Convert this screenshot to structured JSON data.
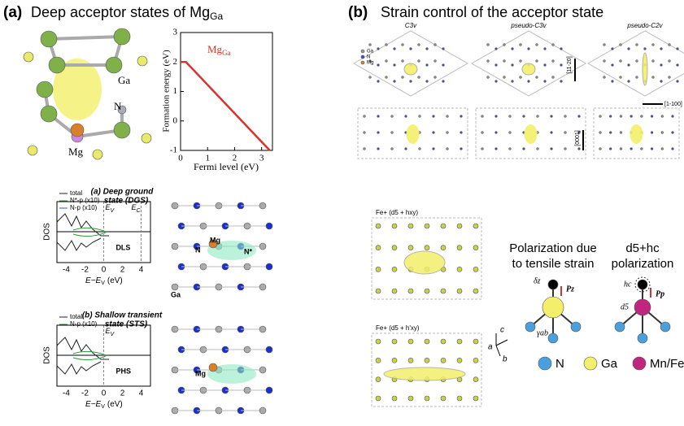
{
  "panel_a": {
    "letter": "(a)",
    "title": "Deep acceptor states of Mg",
    "title_sub": "Ga",
    "structure_labels": [
      "Ga",
      "N",
      "Mg"
    ],
    "plot": {
      "y_label": "Formation energy (eV)",
      "x_label": "Fermi level (eV)",
      "line_label": "Mg",
      "line_label_sub": "Ga",
      "line_color": "#d9342b",
      "x": [
        0,
        0.2,
        3.3
      ],
      "y": [
        2,
        2,
        -1
      ],
      "xlim": [
        0,
        3.4
      ],
      "ylim": [
        -1,
        3
      ],
      "xticks": [
        0,
        1,
        2,
        3
      ],
      "yticks": [
        -1,
        0,
        1,
        2,
        3
      ]
    },
    "dos": [
      {
        "title": [
          "(a) Deep ground",
          "state (DGS)"
        ],
        "legend": [
          "total",
          "N*-p (x10)",
          "N-p (x10)"
        ],
        "annotation": "DLS",
        "ev": "E",
        "ev_sub": "V",
        "ec": "E",
        "ec_sub": "C",
        "y_label": "DOS",
        "x_label": "E−E",
        "x_label_sub": "V",
        "x_label_unit": "(eV)",
        "xticks": [
          -4,
          -2,
          0,
          2,
          4
        ],
        "atoms": [
          "N",
          "Mg",
          "N*",
          "Ga"
        ]
      },
      {
        "title": [
          "(b) Shallow transient",
          "state (STS)"
        ],
        "legend": [
          "total",
          "N-p (x10)"
        ],
        "annotation": "PHS",
        "ev": "E",
        "ev_sub": "V",
        "y_label": "DOS",
        "x_label": "E−E",
        "x_label_sub": "V",
        "x_label_unit": "(eV)",
        "xticks": [
          -4,
          -2,
          0,
          2,
          4
        ],
        "atoms": [
          "Mg"
        ]
      }
    ]
  },
  "panel_b": {
    "letter": "(b)",
    "title": "Strain control of the acceptor state",
    "symmetry": [
      "C3v",
      "pseudo-C3v",
      "pseudo-C2v"
    ],
    "directions": [
      "[11-20]",
      "[1-100]",
      "[0001]"
    ],
    "legend": [
      "Ga",
      "N",
      "Mg"
    ],
    "fe_states": [
      "Fe+ (d5 + hxy)",
      "Fe+ (d5 + h'xy)"
    ],
    "axes": [
      "a",
      "b",
      "c"
    ],
    "polarization": {
      "left": [
        "Polarization due",
        "to tensile strain"
      ],
      "right": [
        "d5+hc",
        "polarization"
      ],
      "left_symbols": [
        "δz",
        "Pz",
        "γab"
      ],
      "right_symbols": [
        "hc",
        "d5",
        "Pp"
      ]
    },
    "atom_legend": [
      "N",
      "Ga",
      "Mn/Fe"
    ]
  }
}
